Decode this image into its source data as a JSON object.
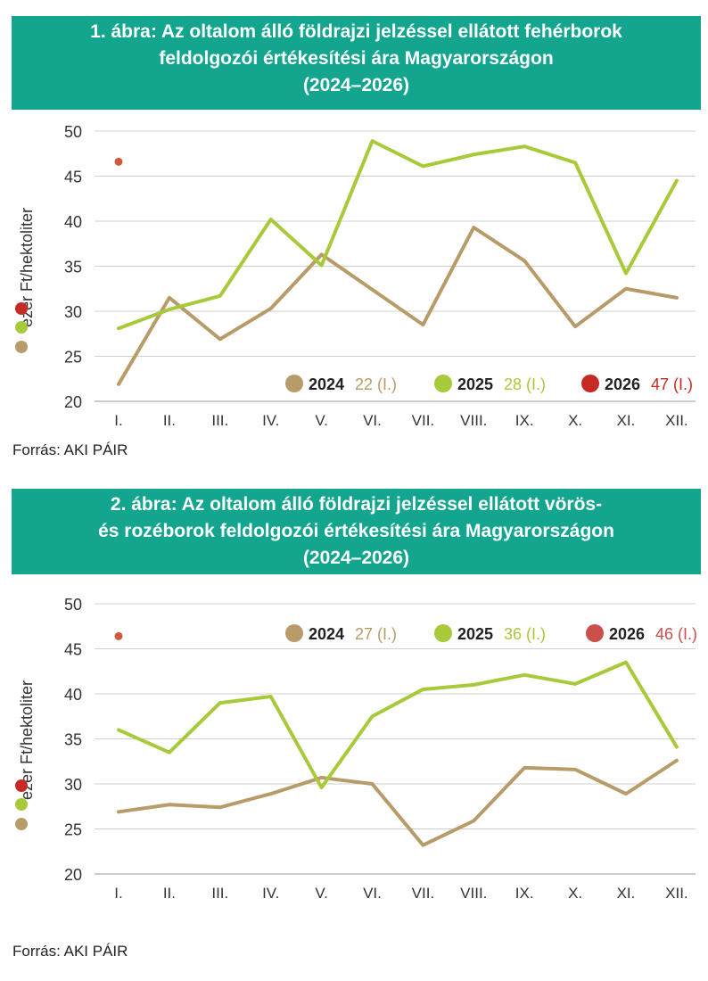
{
  "colors": {
    "header_bg": "#13a58e",
    "s2024": "#b79c69",
    "s2025": "#a8c93a",
    "s2026": "#d15a3c",
    "s2026_marker_1": "#c62a24",
    "s2026_marker_2": "#c9504b",
    "grid": "#cfcfcf"
  },
  "source_label": "Forrás: AKI PÁIR",
  "chart_data": [
    {
      "type": "line",
      "title_lines": [
        "1. ábra: Az oltalom álló földrajzi jelzéssel ellátott fehérborok",
        "feldolgozói értékesítési ára Magyarországon",
        "(2024–2026)"
      ],
      "ylabel": "ezer Ft/hektoliter",
      "ylim": [
        20,
        50
      ],
      "yticks": [
        "50",
        "45",
        "40",
        "35",
        "30",
        "25",
        "20"
      ],
      "categories": [
        "I.",
        "II.",
        "III.",
        "IV.",
        "V.",
        "VI.",
        "VII.",
        "VIII.",
        "IX.",
        "X.",
        "XI.",
        "XII."
      ],
      "series": [
        {
          "name": "2024",
          "color_key": "s2024",
          "values": [
            21.9,
            31.5,
            26.9,
            30.3,
            36.3,
            32.4,
            28.5,
            39.3,
            35.6,
            28.3,
            32.5,
            31.5
          ],
          "legend_value": "22 (I.)"
        },
        {
          "name": "2025",
          "color_key": "s2025",
          "values": [
            28.1,
            30.2,
            31.7,
            40.2,
            35.1,
            48.9,
            46.1,
            47.4,
            48.3,
            46.5,
            34.2,
            44.5
          ],
          "legend_value": "28 (I.)"
        },
        {
          "name": "2026",
          "color_key": "s2026",
          "values": [
            46.6,
            null,
            null,
            null,
            null,
            null,
            null,
            null,
            null,
            null,
            null,
            null
          ],
          "legend_value": "47 (I.)"
        }
      ],
      "legend_position": "bottom-right"
    },
    {
      "type": "line",
      "title_lines": [
        "2. ábra: Az oltalom álló földrajzi jelzéssel ellátott vörös-",
        "és rozéborok feldolgozói értékesítési ára Magyarországon",
        "(2024–2026)"
      ],
      "ylabel": "ezer Ft/hektoliter",
      "ylim": [
        20,
        50
      ],
      "yticks": [
        "50",
        "45",
        "40",
        "35",
        "30",
        "25",
        "20"
      ],
      "categories": [
        "I.",
        "II.",
        "III.",
        "IV.",
        "V.",
        "VI.",
        "VII.",
        "VIII.",
        "IX.",
        "X.",
        "XI.",
        "XII."
      ],
      "series": [
        {
          "name": "2024",
          "color_key": "s2024",
          "values": [
            26.9,
            27.7,
            27.4,
            28.9,
            30.7,
            30.0,
            23.2,
            25.9,
            31.8,
            31.6,
            28.9,
            32.6
          ],
          "legend_value": "27 (I.)"
        },
        {
          "name": "2025",
          "color_key": "s2025",
          "values": [
            36.0,
            33.5,
            39.0,
            39.7,
            29.6,
            37.5,
            40.5,
            41.0,
            42.1,
            41.1,
            43.5,
            34.1
          ],
          "legend_value": "36 (I.)"
        },
        {
          "name": "2026",
          "color_key": "s2026",
          "values": [
            46.4,
            null,
            null,
            null,
            null,
            null,
            null,
            null,
            null,
            null,
            null,
            null
          ],
          "legend_value": "46 (I.)"
        }
      ],
      "legend_position": "top-right"
    }
  ]
}
